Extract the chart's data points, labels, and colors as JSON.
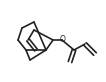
{
  "bg_color": "#ffffff",
  "line_color": "#222222",
  "lw": 1.2,
  "figsize": [
    1.06,
    0.82
  ],
  "dpi": 100
}
